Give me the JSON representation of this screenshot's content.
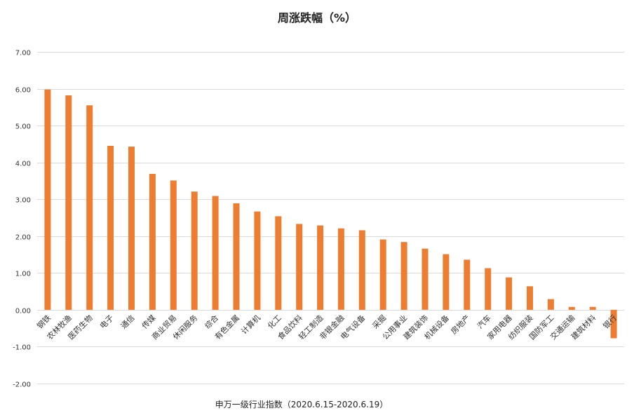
{
  "chart_data": {
    "type": "bar",
    "title": "周涨跌幅（%）",
    "caption": "申万一级行业指数（2020.6.15-2020.6.19）",
    "categories": [
      "钢铁",
      "农林牧渔",
      "医药生物",
      "电子",
      "通信",
      "传媒",
      "商业贸易",
      "休闲服务",
      "综合",
      "有色金属",
      "计算机",
      "化工",
      "食品饮料",
      "轻工制造",
      "非银金融",
      "电气设备",
      "采掘",
      "公用事业",
      "建筑装饰",
      "机械设备",
      "房地产",
      "汽车",
      "家用电器",
      "纺织服装",
      "国防军工",
      "交通运输",
      "建筑材料",
      "银行"
    ],
    "values": [
      5.98,
      5.82,
      5.55,
      4.45,
      4.43,
      3.69,
      3.51,
      3.21,
      3.09,
      2.89,
      2.67,
      2.54,
      2.33,
      2.29,
      2.21,
      2.16,
      1.91,
      1.84,
      1.66,
      1.51,
      1.36,
      1.13,
      0.88,
      0.64,
      0.29,
      0.08,
      0.08,
      -0.77
    ],
    "ylim": [
      -2.0,
      7.0
    ],
    "yticks": [
      "7.00",
      "6.00",
      "5.00",
      "4.00",
      "3.00",
      "2.00",
      "1.00",
      "0.00",
      "-1.00",
      "-2.00"
    ],
    "ytick_values": [
      7,
      6,
      5,
      4,
      3,
      2,
      1,
      0,
      -1,
      -2
    ],
    "grid": true,
    "legend": "none",
    "bar_color": "#ED7D31",
    "grid_color": "#D9D9D9"
  }
}
